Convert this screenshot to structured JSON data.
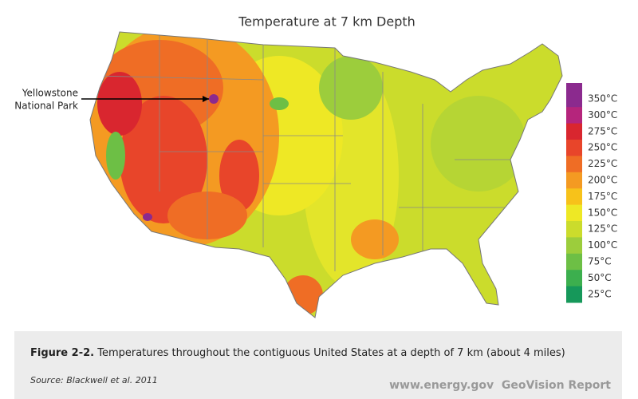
{
  "title": "Temperature at 7 km Depth",
  "annotation": [
    "Yellowstone",
    "National Park"
  ],
  "legend": [
    {
      "label": "350°C",
      "color": "#8b2a8e"
    },
    {
      "label": "300°C",
      "color": "#b5257c"
    },
    {
      "label": "275°C",
      "color": "#d9262f"
    },
    {
      "label": "250°C",
      "color": "#e8452a"
    },
    {
      "label": "225°C",
      "color": "#ef6d25"
    },
    {
      "label": "200°C",
      "color": "#f49a22"
    },
    {
      "label": "175°C",
      "color": "#f7c21a"
    },
    {
      "label": "150°C",
      "color": "#eee825"
    },
    {
      "label": "125°C",
      "color": "#cbdc2c"
    },
    {
      "label": "100°C",
      "color": "#9ccd3c"
    },
    {
      "label": "75°C",
      "color": "#6dbf45"
    },
    {
      "label": "50°C",
      "color": "#3caf4e"
    },
    {
      "label": "25°C",
      "color": "#16985a"
    }
  ],
  "caption": {
    "figure": "Figure 2-2.",
    "text": "Temperatures throughout the contiguous United States at a depth of 7 km (about 4 miles)"
  },
  "source": "Source: Blackwell et al. 2011",
  "footer": [
    "www.energy.gov",
    "GeoVision Report"
  ]
}
